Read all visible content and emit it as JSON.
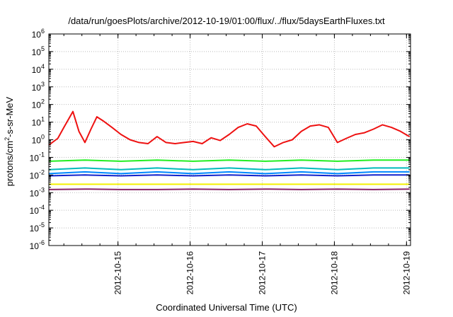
{
  "title": "/data/run/goesPlots/archive/2012-10-19/01:00/flux/../flux/5daysEarthFluxes.txt",
  "colors": {
    "red": "#ee1111",
    "green": "#22ee22",
    "cyan": "#00bbbb",
    "azure": "#0088ff",
    "blue": "#1122cc",
    "yellow": "#f4f000",
    "purple": "#882266",
    "grid": "#bbbbbb"
  },
  "chart_data": {
    "type": "line",
    "title": "/data/run/goesPlots/archive/2012-10-19/01:00/flux/../flux/5daysEarthFluxes.txt",
    "xlabel": "Coordinated Universal Time (UTC)",
    "ylabel": {
      "prefix": "protons/cm",
      "sup": "2",
      "suffix": "-s-sr-MeV"
    },
    "y_scale": "log",
    "ylim": [
      1e-06,
      1000000.0
    ],
    "y_ticks": [
      {
        "value": 1e-06,
        "base": "10",
        "exp": "-6"
      },
      {
        "value": 1e-05,
        "base": "10",
        "exp": "-5"
      },
      {
        "value": 0.0001,
        "base": "10",
        "exp": "-4"
      },
      {
        "value": 0.001,
        "base": "10",
        "exp": "-3"
      },
      {
        "value": 0.01,
        "base": "10",
        "exp": "-2"
      },
      {
        "value": 0.1,
        "base": "10",
        "exp": "-1"
      },
      {
        "value": 1,
        "base": "10",
        "exp": "0"
      },
      {
        "value": 10,
        "base": "10",
        "exp": "1"
      },
      {
        "value": 100,
        "base": "10",
        "exp": "2"
      },
      {
        "value": 1000,
        "base": "10",
        "exp": "3"
      },
      {
        "value": 10000,
        "base": "10",
        "exp": "4"
      },
      {
        "value": 100000,
        "base": "10",
        "exp": "5"
      },
      {
        "value": 1000000,
        "base": "10",
        "exp": "6"
      }
    ],
    "xlim": [
      "2012-10-14T01:00",
      "2012-10-19T01:20"
    ],
    "x_ticks": [
      "2012-10-15",
      "2012-10-16",
      "2012-10-17",
      "2012-10-18",
      "2012-10-19"
    ],
    "grid": true,
    "series": [
      {
        "color": "red",
        "x": [
          "2012-10-14T01:00",
          "2012-10-14T04:00",
          "2012-10-14T06:00",
          "2012-10-14T09:00",
          "2012-10-14T11:00",
          "2012-10-14T13:00",
          "2012-10-14T15:00",
          "2012-10-14T17:00",
          "2012-10-14T19:00",
          "2012-10-14T22:00",
          "2012-10-15T01:00",
          "2012-10-15T04:00",
          "2012-10-15T07:00",
          "2012-10-15T10:00",
          "2012-10-15T13:00",
          "2012-10-15T16:00",
          "2012-10-15T19:00",
          "2012-10-15T22:00",
          "2012-10-16T01:00",
          "2012-10-16T04:00",
          "2012-10-16T07:00",
          "2012-10-16T10:00",
          "2012-10-16T13:00",
          "2012-10-16T16:00",
          "2012-10-16T19:00",
          "2012-10-16T22:00",
          "2012-10-17T01:00",
          "2012-10-17T04:00",
          "2012-10-17T07:00",
          "2012-10-17T10:00",
          "2012-10-17T13:00",
          "2012-10-17T16:00",
          "2012-10-17T19:00",
          "2012-10-17T22:00",
          "2012-10-18T01:00",
          "2012-10-18T04:00",
          "2012-10-18T07:00",
          "2012-10-18T10:00",
          "2012-10-18T13:00",
          "2012-10-18T16:00",
          "2012-10-18T19:00",
          "2012-10-18T22:00",
          "2012-10-19T01:00"
        ],
        "y": [
          0.5,
          1.2,
          5,
          40,
          3,
          0.7,
          4,
          20,
          12,
          5,
          2,
          1,
          0.7,
          0.6,
          1.5,
          0.7,
          0.6,
          0.7,
          0.8,
          0.6,
          1.3,
          0.9,
          2,
          5,
          8,
          6,
          1.5,
          0.4,
          0.7,
          1,
          3,
          6,
          7,
          5,
          0.7,
          1.2,
          2,
          2.5,
          4,
          7,
          5,
          3,
          1.5
        ]
      },
      {
        "color": "green",
        "x": [
          "2012-10-14T01:00",
          "2012-10-14T13:00",
          "2012-10-15T01:00",
          "2012-10-15T13:00",
          "2012-10-16T01:00",
          "2012-10-16T13:00",
          "2012-10-17T01:00",
          "2012-10-17T13:00",
          "2012-10-18T01:00",
          "2012-10-18T13:00",
          "2012-10-19T01:00"
        ],
        "y": [
          0.06,
          0.07,
          0.06,
          0.07,
          0.06,
          0.07,
          0.06,
          0.07,
          0.06,
          0.07,
          0.07
        ]
      },
      {
        "color": "cyan",
        "x": [
          "2012-10-14T01:00",
          "2012-10-14T13:00",
          "2012-10-15T01:00",
          "2012-10-15T13:00",
          "2012-10-16T01:00",
          "2012-10-16T13:00",
          "2012-10-17T01:00",
          "2012-10-17T13:00",
          "2012-10-18T01:00",
          "2012-10-18T13:00",
          "2012-10-19T01:00"
        ],
        "y": [
          0.02,
          0.025,
          0.02,
          0.025,
          0.02,
          0.025,
          0.02,
          0.025,
          0.02,
          0.025,
          0.025
        ]
      },
      {
        "color": "azure",
        "x": [
          "2012-10-14T01:00",
          "2012-10-14T13:00",
          "2012-10-15T01:00",
          "2012-10-15T13:00",
          "2012-10-16T01:00",
          "2012-10-16T13:00",
          "2012-10-17T01:00",
          "2012-10-17T13:00",
          "2012-10-18T01:00",
          "2012-10-18T13:00",
          "2012-10-19T01:00"
        ],
        "y": [
          0.012,
          0.015,
          0.012,
          0.015,
          0.012,
          0.015,
          0.012,
          0.015,
          0.012,
          0.015,
          0.015
        ]
      },
      {
        "color": "blue",
        "x": [
          "2012-10-14T01:00",
          "2012-10-14T13:00",
          "2012-10-15T01:00",
          "2012-10-15T13:00",
          "2012-10-16T01:00",
          "2012-10-16T13:00",
          "2012-10-17T01:00",
          "2012-10-17T13:00",
          "2012-10-18T01:00",
          "2012-10-18T13:00",
          "2012-10-19T01:00"
        ],
        "y": [
          0.009,
          0.01,
          0.009,
          0.01,
          0.009,
          0.01,
          0.009,
          0.01,
          0.009,
          0.01,
          0.01
        ]
      },
      {
        "color": "yellow",
        "x": [
          "2012-10-14T01:00",
          "2012-10-15T01:00",
          "2012-10-16T01:00",
          "2012-10-17T01:00",
          "2012-10-18T01:00",
          "2012-10-19T01:00"
        ],
        "y": [
          0.003,
          0.003,
          0.003,
          0.003,
          0.003,
          0.003
        ]
      },
      {
        "color": "purple",
        "x": [
          "2012-10-14T01:00",
          "2012-10-14T13:00",
          "2012-10-15T01:00",
          "2012-10-15T13:00",
          "2012-10-16T01:00",
          "2012-10-16T13:00",
          "2012-10-17T01:00",
          "2012-10-17T13:00",
          "2012-10-18T01:00",
          "2012-10-18T13:00",
          "2012-10-19T01:00"
        ],
        "y": [
          0.0015,
          0.0016,
          0.0015,
          0.0015,
          0.0016,
          0.0015,
          0.0016,
          0.0015,
          0.0016,
          0.0015,
          0.0016
        ]
      }
    ]
  }
}
